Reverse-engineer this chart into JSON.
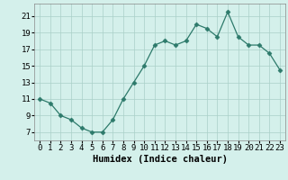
{
  "x": [
    0,
    1,
    2,
    3,
    4,
    5,
    6,
    7,
    8,
    9,
    10,
    11,
    12,
    13,
    14,
    15,
    16,
    17,
    18,
    19,
    20,
    21,
    22,
    23
  ],
  "y": [
    11,
    10.5,
    9,
    8.5,
    7.5,
    7,
    7,
    8.5,
    11,
    13,
    15,
    17.5,
    18,
    17.5,
    18,
    20,
    19.5,
    18.5,
    21.5,
    18.5,
    17.5,
    17.5,
    16.5,
    14.5
  ],
  "line_color": "#2d7a6b",
  "marker": "D",
  "marker_size": 2.5,
  "bg_color": "#d4f0eb",
  "grid_color": "#aacfc8",
  "xlabel": "Humidex (Indice chaleur)",
  "xlim": [
    -0.5,
    23.5
  ],
  "ylim": [
    6,
    22.5
  ],
  "yticks": [
    7,
    9,
    11,
    13,
    15,
    17,
    19,
    21
  ],
  "xticks": [
    0,
    1,
    2,
    3,
    4,
    5,
    6,
    7,
    8,
    9,
    10,
    11,
    12,
    13,
    14,
    15,
    16,
    17,
    18,
    19,
    20,
    21,
    22,
    23
  ],
  "xlabel_fontsize": 7.5,
  "tick_fontsize": 6.5
}
